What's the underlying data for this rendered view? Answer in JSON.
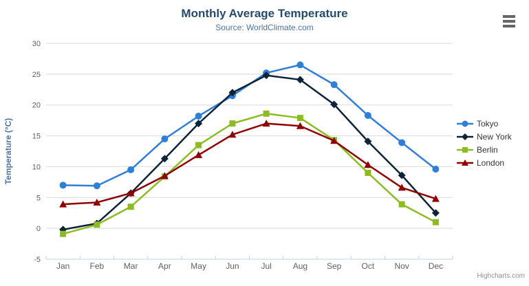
{
  "chart_data": {
    "type": "line",
    "title": "Monthly Average Temperature",
    "subtitle": "Source: WorldClimate.com",
    "categories": [
      "Jan",
      "Feb",
      "Mar",
      "Apr",
      "May",
      "Jun",
      "Jul",
      "Aug",
      "Sep",
      "Oct",
      "Nov",
      "Dec"
    ],
    "series": [
      {
        "name": "Tokyo",
        "color": "#2f7ed8",
        "marker": "circle",
        "values": [
          7.0,
          6.9,
          9.5,
          14.5,
          18.2,
          21.5,
          25.2,
          26.5,
          23.3,
          18.3,
          13.9,
          9.6
        ]
      },
      {
        "name": "New York",
        "color": "#0d233a",
        "marker": "diamond",
        "values": [
          -0.2,
          0.8,
          5.7,
          11.3,
          17.0,
          22.0,
          24.8,
          24.1,
          20.1,
          14.1,
          8.6,
          2.5
        ]
      },
      {
        "name": "Berlin",
        "color": "#8bbc21",
        "marker": "square",
        "values": [
          -0.9,
          0.6,
          3.5,
          8.4,
          13.5,
          17.0,
          18.6,
          17.9,
          14.3,
          9.0,
          3.9,
          1.0
        ]
      },
      {
        "name": "London",
        "color": "#910000",
        "marker": "triangle",
        "values": [
          3.9,
          4.2,
          5.7,
          8.5,
          11.9,
          15.2,
          17.0,
          16.6,
          14.2,
          10.3,
          6.6,
          4.8
        ]
      }
    ],
    "xlabel": "",
    "ylabel": "Temperature (°C)",
    "ylim": [
      -5,
      30
    ],
    "ytick_step": 5,
    "grid": true,
    "legend_position": "right"
  },
  "credits": "Highcharts.com",
  "colors": {
    "title": "#274b6d",
    "subtitle": "#4d759e",
    "axis_title": "#4d759e",
    "tick_label": "#606060",
    "grid_line": "#d8d8d8",
    "axis_line": "#c0d0e0",
    "legend_text": "#333333",
    "credits": "#909090",
    "burger_icon": "#666666"
  }
}
